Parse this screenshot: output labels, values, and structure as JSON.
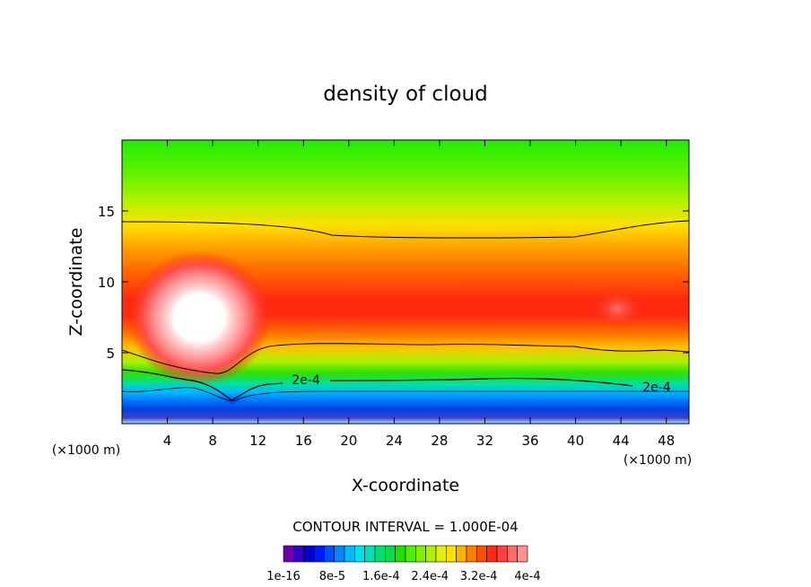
{
  "chart_data": {
    "type": "heatmap",
    "title": "density of cloud",
    "xlabel": "X-coordinate",
    "ylabel": "Z-coordinate",
    "x_unit_left": "(×1000 m)",
    "x_unit_right": "(×1000 m)",
    "xlim": [
      0,
      50
    ],
    "ylim": [
      0,
      20
    ],
    "x_ticks": [
      4,
      8,
      12,
      16,
      20,
      24,
      28,
      32,
      36,
      40,
      44,
      48
    ],
    "y_ticks": [
      5,
      10,
      15
    ],
    "contour_interval_text": "CONTOUR INTERVAL = 1.000E-04",
    "contour_label": "2e-4",
    "colorbar": {
      "labels": [
        "1e-16",
        "8e-5",
        "1.6e-4",
        "2.4e-4",
        "3.2e-4",
        "4e-4"
      ],
      "colors": [
        "#6a00a8",
        "#3300cc",
        "#0000d0",
        "#0018ff",
        "#0050ff",
        "#0088ff",
        "#00b8ff",
        "#00e0f0",
        "#00e0b0",
        "#00e070",
        "#00e040",
        "#20e000",
        "#50f000",
        "#80f000",
        "#b0f000",
        "#e0f000",
        "#ffe000",
        "#ffb000",
        "#ff8000",
        "#ff5000",
        "#ff2a10",
        "#ff4040",
        "#ff6a6a",
        "#ff9090"
      ],
      "range": [
        0,
        0.0004
      ]
    },
    "field_bands": [
      {
        "z_top": 1.8,
        "value_label": "1e-16"
      },
      {
        "z_top": 4.0,
        "value_label": "8e-5"
      },
      {
        "z_top": 11.0,
        "value_label": "3.2e-4"
      },
      {
        "z_top": 14.0,
        "value_label": "2.4e-4"
      },
      {
        "z_top": 20.0,
        "value_label": "1.6e-4"
      }
    ],
    "max_region": {
      "x": 7,
      "z": 8,
      "value_label": "4e-4"
    },
    "grid": false
  }
}
